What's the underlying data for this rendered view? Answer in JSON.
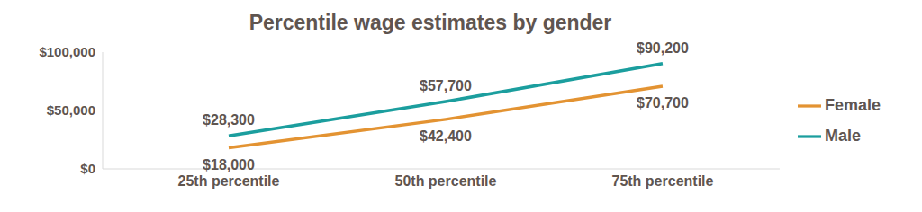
{
  "chart_data": {
    "type": "line",
    "title": "Percentile wage estimates by gender",
    "categories": [
      "25th percentile",
      "50th percentile",
      "75th percentile"
    ],
    "series": [
      {
        "name": "Male",
        "color": "#1b9e9e",
        "values": [
          28300,
          57700,
          90200
        ],
        "value_labels": [
          "$28,300",
          "$57,700",
          "$90,200"
        ]
      },
      {
        "name": "Female",
        "color": "#e39332",
        "values": [
          18000,
          42400,
          70700
        ],
        "value_labels": [
          "$18,000",
          "$42,400",
          "$70,700"
        ]
      }
    ],
    "ylim": [
      0,
      100000
    ],
    "yticks": [
      {
        "value": 0,
        "label": "$0"
      },
      {
        "value": 50000,
        "label": "$50,000"
      },
      {
        "value": 100000,
        "label": "$100,000"
      }
    ],
    "grid": false,
    "legend": "right",
    "data_labels": true
  }
}
